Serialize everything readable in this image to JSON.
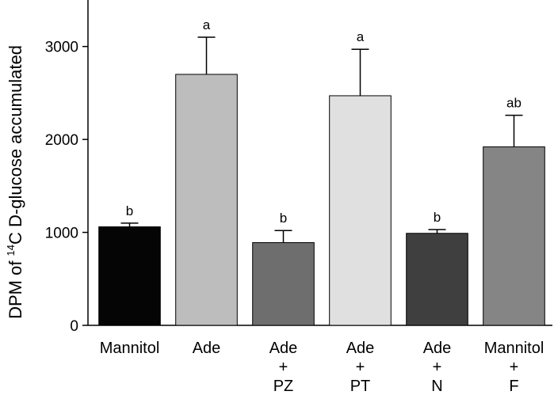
{
  "chart_data": {
    "type": "bar",
    "ylabel": {
      "prefix": "DPM of ",
      "sup": "14",
      "suffix": "C D-glucose accumulated"
    },
    "ylim": [
      0,
      3500
    ],
    "yticks": [
      "0",
      "1000",
      "2000",
      "3000"
    ],
    "grid": false,
    "categories": [
      [
        "Mannitol"
      ],
      [
        "Ade"
      ],
      [
        "Ade",
        "+",
        "PZ"
      ],
      [
        "Ade",
        "+",
        "PT"
      ],
      [
        "Ade",
        "+",
        "N"
      ],
      [
        "Mannitol",
        "+",
        "F"
      ]
    ],
    "values": [
      1060,
      2700,
      890,
      2470,
      990,
      1920
    ],
    "errors": [
      40,
      400,
      130,
      500,
      40,
      340
    ],
    "significance": [
      "b",
      "a",
      "b",
      "a",
      "b",
      "ab"
    ],
    "colors": [
      "#050505",
      "#bdbdbd",
      "#6e6e6e",
      "#e0e0e0",
      "#3f3f3f",
      "#858585"
    ]
  }
}
